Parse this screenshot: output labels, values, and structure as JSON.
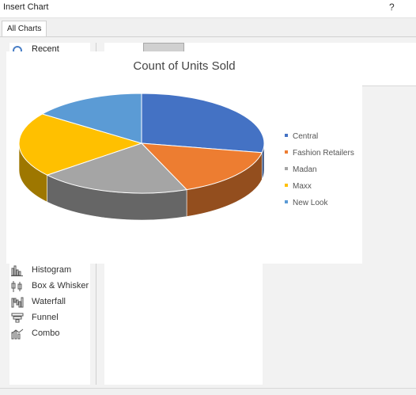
{
  "window": {
    "title": "Insert Chart",
    "help_label": "?"
  },
  "tabs": [
    {
      "label": "All Charts"
    }
  ],
  "sidebar": {
    "recent_label": "Recent",
    "items": [
      {
        "label": "Histogram",
        "icon": "histogram-icon"
      },
      {
        "label": "Box & Whisker",
        "icon": "box-whisker-icon"
      },
      {
        "label": "Waterfall",
        "icon": "waterfall-icon"
      },
      {
        "label": "Funnel",
        "icon": "funnel-icon"
      },
      {
        "label": "Combo",
        "icon": "combo-icon"
      }
    ]
  },
  "chart_data": {
    "type": "pie",
    "title": "Count of Units Sold",
    "categories": [
      "Central",
      "Fashion Retailers",
      "Madan",
      "Maxx",
      "New Look"
    ],
    "values": [
      28,
      16,
      20,
      21,
      15
    ],
    "colors": [
      "#4472c4",
      "#ed7d31",
      "#a5a5a5",
      "#ffc000",
      "#5b9bd5"
    ],
    "legend_position": "right",
    "style": "3d"
  }
}
